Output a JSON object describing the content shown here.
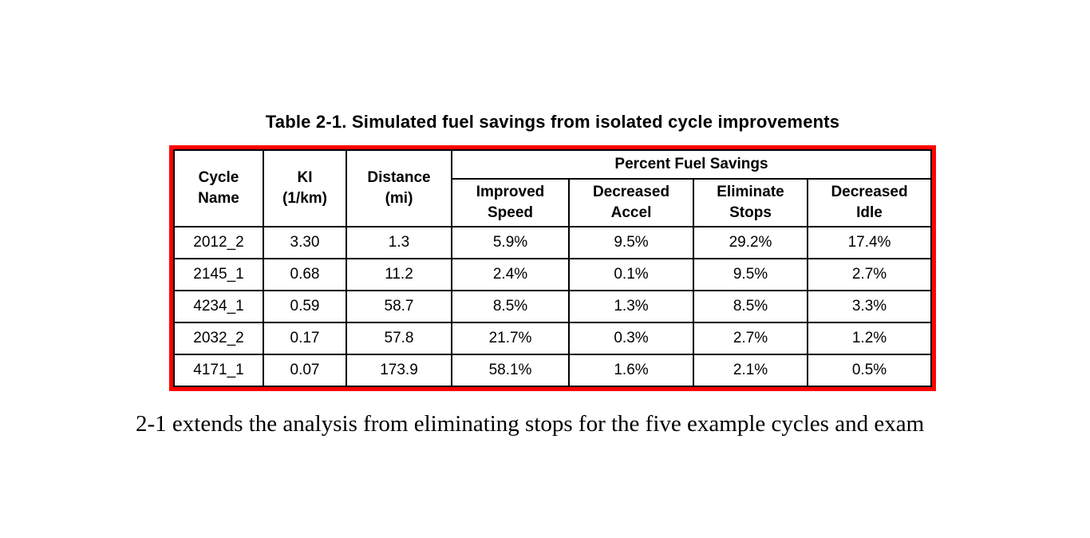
{
  "title": "Table 2-1. Simulated fuel savings from isolated cycle improvements",
  "table": {
    "row_headers": [
      "Cycle\nName",
      "KI\n(1/km)",
      "Distance\n(mi)"
    ],
    "group_header": "Percent Fuel Savings",
    "sub_headers": [
      "Improved\nSpeed",
      "Decreased\nAccel",
      "Eliminate\nStops",
      "Decreased\nIdle"
    ],
    "rows": [
      [
        "2012_2",
        "3.30",
        "1.3",
        "5.9%",
        "9.5%",
        "29.2%",
        "17.4%"
      ],
      [
        "2145_1",
        "0.68",
        "11.2",
        "2.4%",
        "0.1%",
        "9.5%",
        "2.7%"
      ],
      [
        "4234_1",
        "0.59",
        "58.7",
        "8.5%",
        "1.3%",
        "8.5%",
        "3.3%"
      ],
      [
        "2032_2",
        "0.17",
        "57.8",
        "21.7%",
        "0.3%",
        "2.7%",
        "1.2%"
      ],
      [
        "4171_1",
        "0.07",
        "173.9",
        "58.1%",
        "1.6%",
        "2.1%",
        "0.5%"
      ]
    ]
  },
  "body_text": "2-1 extends the analysis from eliminating stops for the five example cycles and exam",
  "colors": {
    "table_outline": "#ff0000",
    "grid_lines": "#000000",
    "text": "#000000",
    "background": "#ffffff"
  }
}
